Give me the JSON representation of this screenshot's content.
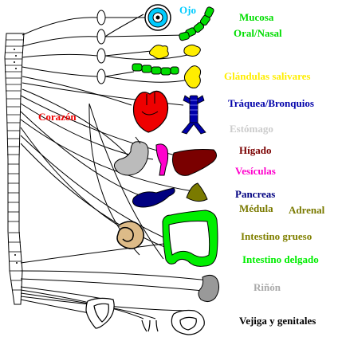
{
  "colors": {
    "eye": "#00ccff",
    "mucosa": "#00dd00",
    "salivary": "#ffee00",
    "trachea": "#0000aa",
    "heart": "#ee0000",
    "stomach": "#bbbbbb",
    "liver": "#7a0000",
    "gallbladder": "#ff00cc",
    "pancreas": "#000080",
    "adrenal": "#7a7a00",
    "large_intestine": "#808000",
    "small_intestine": "#00ee00",
    "kidney": "#999999",
    "bladder": "#000000",
    "nerve": "#000000"
  },
  "labels": {
    "ojo": "Ojo",
    "mucosa": "Mucosa",
    "oral_nasal": "Oral/Nasal",
    "glandulas": "Glándulas salivares",
    "traquea": "Tráquea/Bronquios",
    "corazon": "Corazón",
    "estomago": "Estómago",
    "higado": "Hígado",
    "vesiculas": "Vesículas",
    "pancreas": "Pancreas",
    "medula": "Médula",
    "adrenal": "Adrenal",
    "intestino_grueso": "Intestino grueso",
    "intestino_delgado": "Intestino delgado",
    "rinon": "Riñón",
    "vejiga": "Vejiga y genitales"
  }
}
